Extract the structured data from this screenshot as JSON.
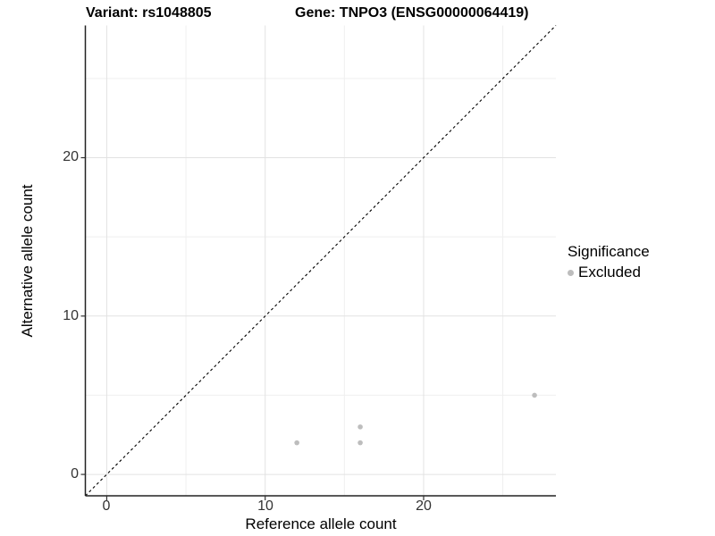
{
  "chart_data": {
    "type": "scatter",
    "title_left": "Variant: rs1048805",
    "title_right": "Gene: TNPO3 (ENSG00000064419)",
    "xlabel": "Reference allele count",
    "ylabel": "Alternative allele count",
    "x_ticks": [
      0,
      10,
      20
    ],
    "y_ticks": [
      0,
      10,
      20
    ],
    "x_minor_ticks": [
      5,
      15,
      25
    ],
    "y_minor_ticks": [
      5,
      15,
      25
    ],
    "xlim": [
      -1.35,
      28.35
    ],
    "ylim": [
      -1.35,
      28.35
    ],
    "grid": "on",
    "identity_line": {
      "slope": 1,
      "intercept": 0,
      "style": "dashed",
      "color": "#000000"
    },
    "legend": {
      "position": "right",
      "title": "Significance",
      "items": [
        {
          "label": "Excluded",
          "color": "#bdbdbd"
        }
      ]
    },
    "series": [
      {
        "name": "Excluded",
        "color": "#bdbdbd",
        "points": [
          [
            12,
            2
          ],
          [
            16,
            2
          ],
          [
            16,
            3
          ],
          [
            27,
            5
          ]
        ]
      }
    ],
    "colors": {
      "major_grid": "#e2e2e2",
      "minor_grid": "#efefef",
      "axis_line": "#222222",
      "tick_mark": "#333333"
    }
  }
}
